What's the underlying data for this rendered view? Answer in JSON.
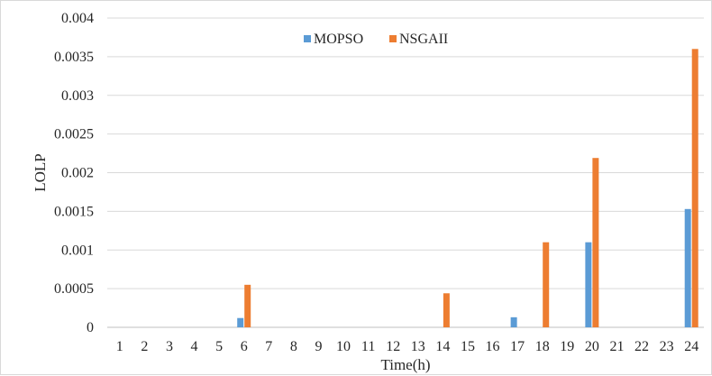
{
  "chart_data": {
    "type": "bar",
    "title": "",
    "xlabel": "Time(h)",
    "ylabel": "LOLP",
    "ylim": [
      0,
      0.004
    ],
    "yticks": [
      "0",
      "0.0005",
      "0.001",
      "0.0015",
      "0.002",
      "0.0025",
      "0.003",
      "0.0035",
      "0.004"
    ],
    "categories": [
      "1",
      "2",
      "3",
      "4",
      "5",
      "6",
      "7",
      "8",
      "9",
      "10",
      "11",
      "12",
      "13",
      "14",
      "15",
      "16",
      "17",
      "18",
      "19",
      "20",
      "21",
      "22",
      "23",
      "24"
    ],
    "series": [
      {
        "name": "MOPSO",
        "color": "#5b9bd5",
        "values": [
          0,
          0,
          0,
          0,
          0,
          0.00012,
          0,
          0,
          0,
          0,
          0,
          0,
          0,
          0,
          0,
          0,
          0.00013,
          0,
          0,
          0.0011,
          0,
          0,
          0,
          0.00153
        ]
      },
      {
        "name": "NSGAII",
        "color": "#ed7d31",
        "values": [
          0,
          0,
          0,
          0,
          0,
          0.00055,
          0,
          0,
          0,
          0,
          0,
          0,
          0,
          0.00044,
          0,
          0,
          0,
          0.0011,
          0,
          0.00219,
          0,
          0,
          0,
          0.0036
        ]
      }
    ],
    "grid": true,
    "legend_position": "top-center"
  }
}
